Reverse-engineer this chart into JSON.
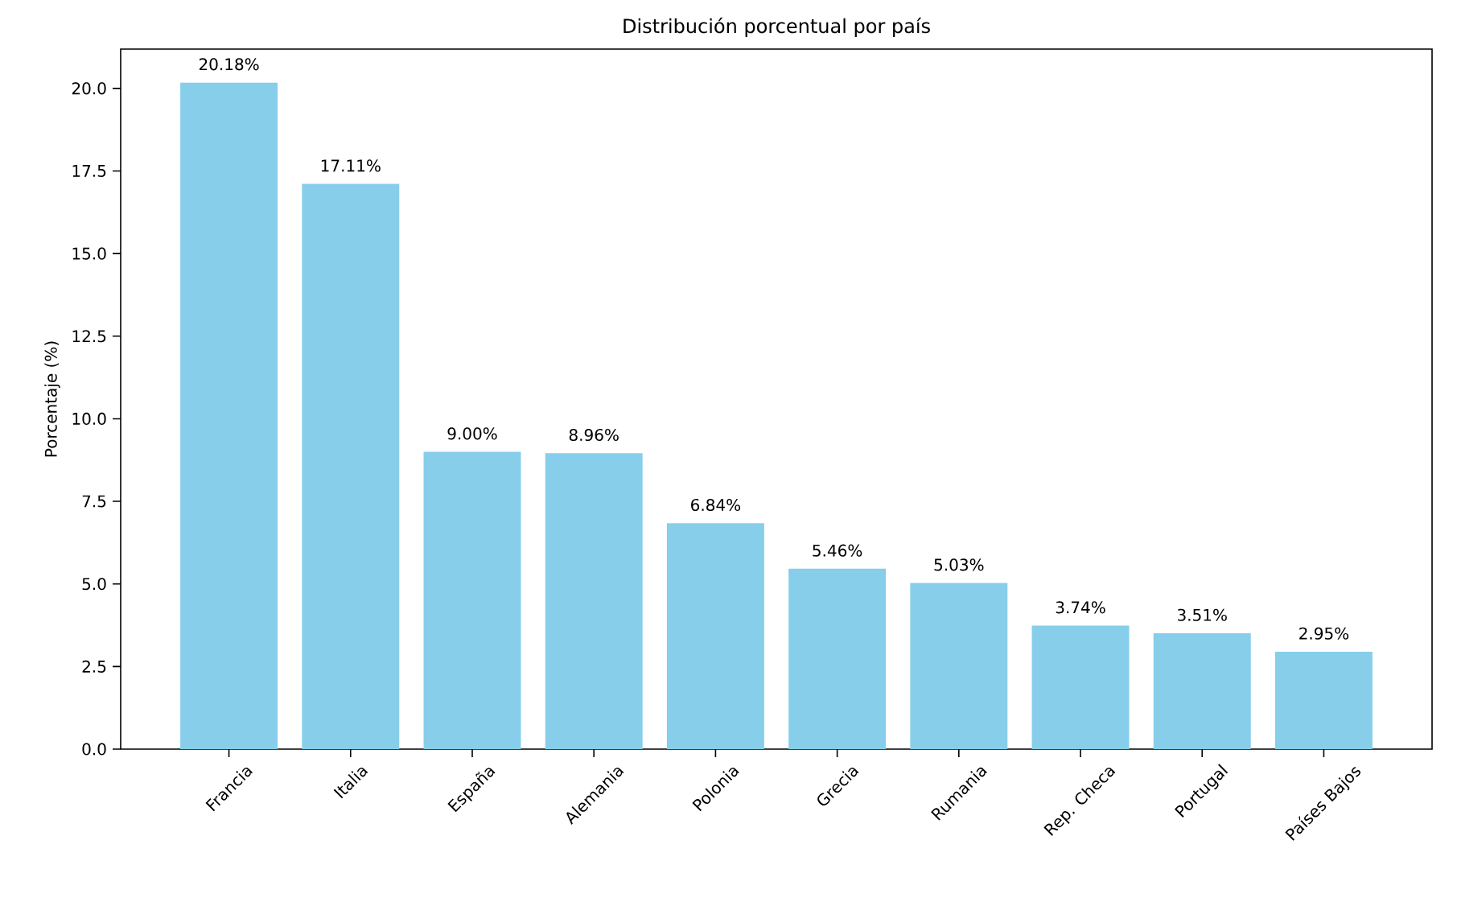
{
  "chart_data": {
    "type": "bar",
    "title": "Distribución porcentual por país",
    "ylabel": "Porcentaje (%)",
    "categories": [
      "Francia",
      "Italia",
      "España",
      "Alemania",
      "Polonia",
      "Grecia",
      "Rumania",
      "Rep. Checa",
      "Portugal",
      "Países Bajos"
    ],
    "values": [
      20.18,
      17.11,
      9.0,
      8.96,
      6.84,
      5.46,
      5.03,
      3.74,
      3.51,
      2.95
    ],
    "value_labels": [
      "20.18%",
      "17.11%",
      "9.00%",
      "8.96%",
      "6.84%",
      "5.46%",
      "5.03%",
      "3.74%",
      "3.51%",
      "2.95%"
    ],
    "color": "#87ceeb",
    "ylim": [
      0,
      21.19
    ],
    "yticks": [
      {
        "value": 0,
        "label": "0.0"
      },
      {
        "value": 2.5,
        "label": "2.5"
      },
      {
        "value": 5,
        "label": "5.0"
      },
      {
        "value": 7.5,
        "label": "7.5"
      },
      {
        "value": 10,
        "label": "10.0"
      },
      {
        "value": 12.5,
        "label": "12.5"
      },
      {
        "value": 15,
        "label": "15.0"
      },
      {
        "value": 17.5,
        "label": "17.5"
      },
      {
        "value": 20,
        "label": "20.0"
      }
    ]
  }
}
